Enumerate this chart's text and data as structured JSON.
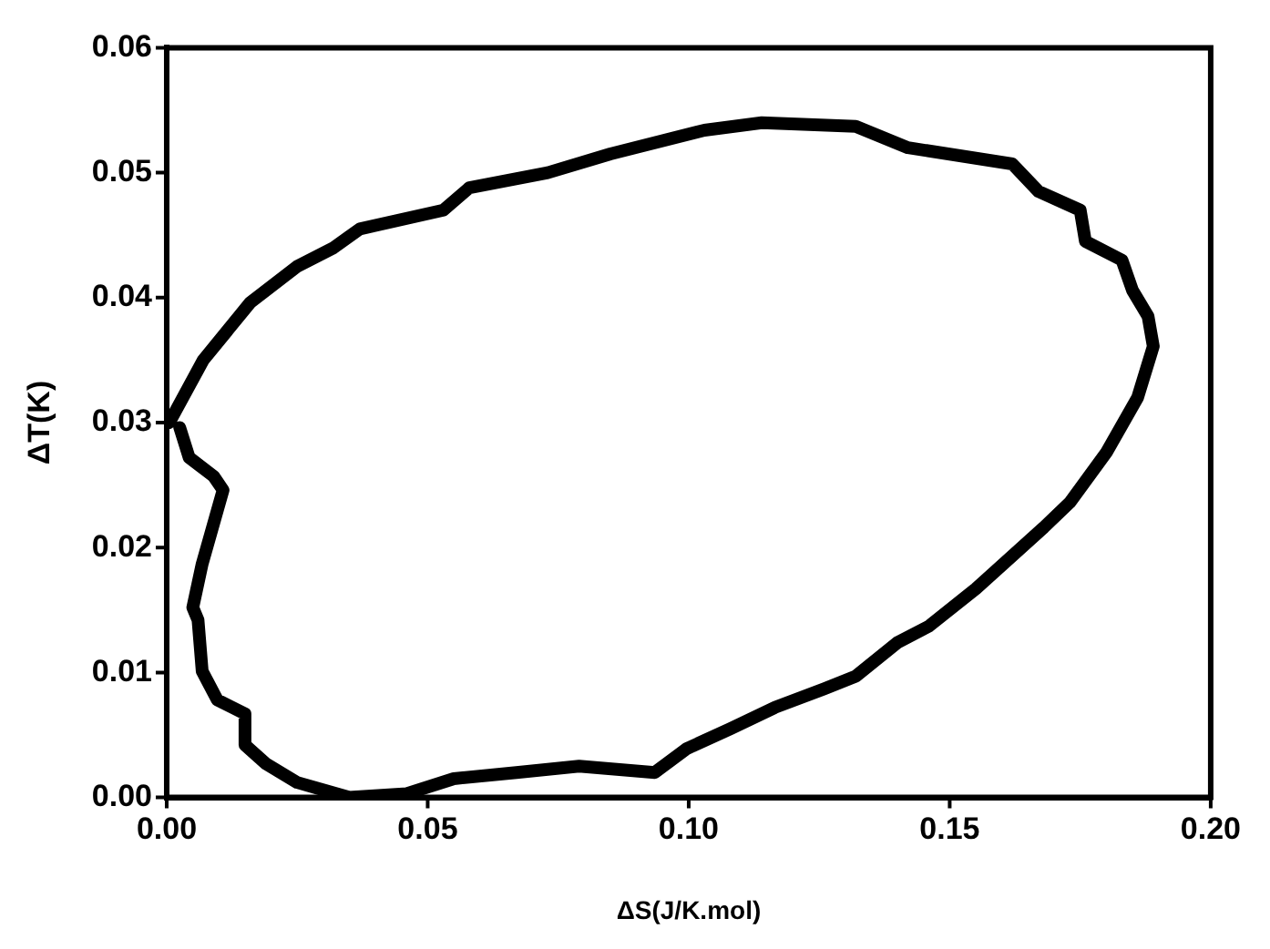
{
  "chart_data": {
    "type": "line",
    "xlabel": "ΔS(J/K.mol)",
    "ylabel": "ΔT(K)",
    "marker": "none",
    "line_style": "solid",
    "grid": false,
    "legend": false,
    "xlim": [
      0,
      0.2
    ],
    "ylim": [
      0,
      0.06
    ],
    "xticks": [
      {
        "value": 0,
        "label": "0.00"
      },
      {
        "value": 0.05,
        "label": "0.05"
      },
      {
        "value": 0.1,
        "label": "0.10"
      },
      {
        "value": 0.15,
        "label": "0.15"
      },
      {
        "value": 0.2,
        "label": "0.20"
      }
    ],
    "yticks": [
      {
        "value": 0,
        "label": "0.00"
      },
      {
        "value": 0.01,
        "label": "0.01"
      },
      {
        "value": 0.02,
        "label": "0.02"
      },
      {
        "value": 0.03,
        "label": "0.03"
      },
      {
        "value": 0.04,
        "label": "0.04"
      },
      {
        "value": 0.05,
        "label": "0.05"
      },
      {
        "value": 0.06,
        "label": "0.06"
      }
    ],
    "series": [
      {
        "color": "#000000",
        "x": [
          0.0005,
          0.007,
          0.016,
          0.025,
          0.032,
          0.037,
          0.053,
          0.058,
          0.073,
          0.085,
          0.103,
          0.114,
          0.132,
          0.142,
          0.162,
          0.167,
          0.175,
          0.176,
          0.183,
          0.185,
          0.188,
          0.189,
          0.186,
          0.18,
          0.173,
          0.168,
          0.155,
          0.146,
          0.14,
          0.132,
          0.126,
          0.1165,
          0.108,
          0.0996,
          0.0935,
          0.079,
          0.067,
          0.055,
          0.046,
          0.035,
          0.025,
          0.019,
          0.015,
          0.015,
          0.0097,
          0.0068,
          0.006,
          0.005,
          0.0068,
          0.0108,
          0.009,
          0.0043,
          0.0025
        ],
        "values": [
          0.03,
          0.035,
          0.0396,
          0.0425,
          0.044,
          0.0455,
          0.047,
          0.0488,
          0.05,
          0.0515,
          0.0534,
          0.054,
          0.0537,
          0.052,
          0.0507,
          0.0485,
          0.047,
          0.0445,
          0.043,
          0.0406,
          0.0385,
          0.0361,
          0.032,
          0.0276,
          0.0236,
          0.0216,
          0.0167,
          0.0137,
          0.0124,
          0.0097,
          0.0087,
          0.0072,
          0.0055,
          0.0039,
          0.002,
          0.0025,
          0.002,
          0.0015,
          0.0003,
          0.0,
          0.0012,
          0.0027,
          0.0042,
          0.0067,
          0.0078,
          0.0101,
          0.0142,
          0.0152,
          0.0187,
          0.0246,
          0.0257,
          0.0272,
          0.0296
        ]
      }
    ]
  }
}
